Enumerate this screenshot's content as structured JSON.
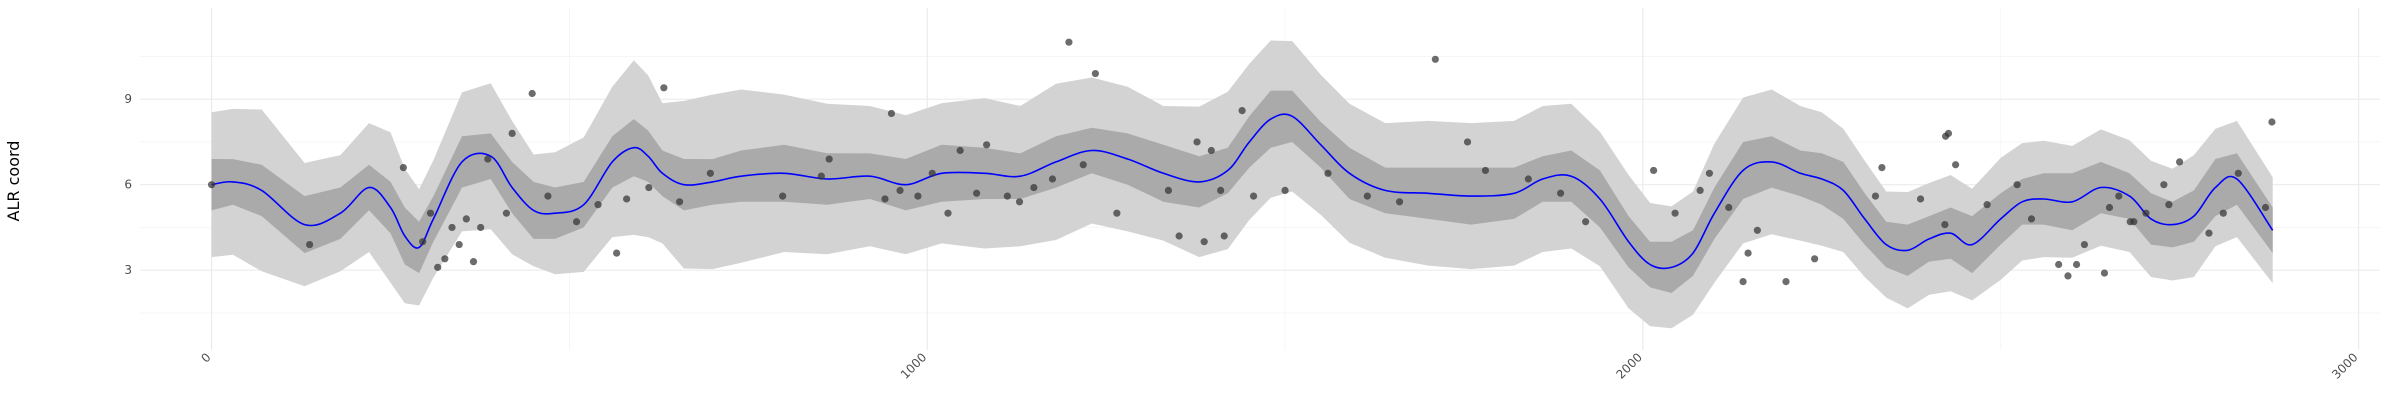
{
  "chart_data": {
    "type": "scatter",
    "title": "",
    "xlabel": "",
    "ylabel": "ALR coord",
    "xlim": [
      -100,
      3030
    ],
    "ylim": [
      0.2,
      12.2
    ],
    "x_ticks": [
      0,
      1000,
      2000,
      3000
    ],
    "x_tick_labels": [
      "0",
      "1000",
      "2000",
      "3000"
    ],
    "y_ticks": [
      3,
      6,
      9
    ],
    "y_tick_labels": [
      "3",
      "6",
      "9"
    ],
    "grid": true,
    "colors": {
      "line": "#0000ff",
      "inner_band": "#aaaaaa",
      "outer_band": "#d3d3d3",
      "points": "#333333"
    },
    "series": [
      {
        "role": "fitted-line",
        "x": [
          0,
          30,
          70,
          130,
          180,
          220,
          250,
          270,
          290,
          310,
          350,
          390,
          420,
          450,
          480,
          520,
          560,
          590,
          610,
          630,
          660,
          700,
          740,
          800,
          860,
          920,
          970,
          1020,
          1080,
          1130,
          1180,
          1230,
          1280,
          1330,
          1380,
          1420,
          1450,
          1480,
          1510,
          1550,
          1590,
          1640,
          1700,
          1760,
          1820,
          1860,
          1900,
          1940,
          1980,
          2010,
          2040,
          2070,
          2100,
          2140,
          2180,
          2220,
          2250,
          2280,
          2310,
          2340,
          2370,
          2400,
          2430,
          2460,
          2500,
          2530,
          2560,
          2600,
          2640,
          2680,
          2710,
          2740,
          2770,
          2800,
          2830,
          2880
        ],
        "y": [
          6.0,
          6.1,
          5.8,
          4.6,
          5.0,
          5.9,
          5.2,
          4.2,
          3.8,
          4.8,
          6.8,
          7.0,
          5.9,
          5.1,
          5.0,
          5.3,
          6.8,
          7.3,
          7.0,
          6.4,
          6.0,
          6.1,
          6.3,
          6.4,
          6.2,
          6.3,
          6.0,
          6.4,
          6.4,
          6.3,
          6.8,
          7.2,
          6.9,
          6.4,
          6.1,
          6.5,
          7.5,
          8.3,
          8.4,
          7.4,
          6.4,
          5.8,
          5.7,
          5.6,
          5.7,
          6.2,
          6.3,
          5.5,
          4.0,
          3.2,
          3.1,
          3.6,
          5.0,
          6.5,
          6.8,
          6.4,
          6.2,
          5.8,
          4.8,
          3.9,
          3.7,
          4.1,
          4.3,
          3.9,
          4.8,
          5.4,
          5.5,
          5.4,
          5.9,
          5.6,
          4.8,
          4.6,
          4.9,
          5.9,
          6.2,
          4.4
        ]
      },
      {
        "role": "observations",
        "x": [
          0,
          137,
          268,
          295,
          306,
          316,
          326,
          336,
          346,
          356,
          366,
          376,
          386,
          412,
          420,
          448,
          470,
          510,
          540,
          566,
          580,
          611,
          632,
          654,
          697,
          798,
          852,
          863,
          941,
          950,
          962,
          987,
          1007,
          1029,
          1046,
          1069,
          1083,
          1112,
          1129,
          1149,
          1175,
          1198,
          1218,
          1235,
          1265,
          1337,
          1352,
          1377,
          1387,
          1397,
          1410,
          1415,
          1440,
          1456,
          1500,
          1560,
          1615,
          1660,
          1710,
          1755,
          1780,
          1840,
          1885,
          1920,
          2015,
          2045,
          2080,
          2093,
          2120,
          2140,
          2147,
          2160,
          2200,
          2240,
          2325,
          2334,
          2388,
          2422,
          2423,
          2427,
          2437,
          2481,
          2523,
          2543,
          2581,
          2594,
          2606,
          2617,
          2645,
          2652,
          2665,
          2681,
          2686,
          2703,
          2728,
          2735,
          2750,
          2791,
          2811,
          2832,
          2870,
          2879
        ],
        "y": [
          6.0,
          3.9,
          6.6,
          4.0,
          5.0,
          3.1,
          3.4,
          4.5,
          3.9,
          4.8,
          3.3,
          4.5,
          6.9,
          5.0,
          7.8,
          9.2,
          5.6,
          4.7,
          5.3,
          3.6,
          5.5,
          5.9,
          9.4,
          5.4,
          6.4,
          5.6,
          6.3,
          6.9,
          5.5,
          8.5,
          5.8,
          5.6,
          6.4,
          5.0,
          7.2,
          5.7,
          7.4,
          5.6,
          5.4,
          5.9,
          6.2,
          11.0,
          6.7,
          9.9,
          5.0,
          5.8,
          4.2,
          7.5,
          4.0,
          7.2,
          5.8,
          4.2,
          8.6,
          5.6,
          5.8,
          6.4,
          5.6,
          5.4,
          10.4,
          7.5,
          6.5,
          6.2,
          5.7,
          4.7,
          6.5,
          5.0,
          5.8,
          6.4,
          5.2,
          2.6,
          3.6,
          4.4,
          2.6,
          3.4,
          5.6,
          6.6,
          5.5,
          4.6,
          7.7,
          7.8,
          6.7,
          5.3,
          6.0,
          4.8,
          3.2,
          2.8,
          3.2,
          3.9,
          2.9,
          5.2,
          5.6,
          4.7,
          4.7,
          5.0,
          6.0,
          5.3,
          6.8,
          4.3,
          5.0,
          6.4,
          5.2,
          8.2
        ]
      }
    ],
    "bands": [
      {
        "role": "inner-band",
        "half_width": [
          0.9,
          0.8,
          0.9,
          1.0,
          0.9,
          0.8,
          0.9,
          1.0,
          0.9,
          0.8,
          0.9,
          0.8,
          0.9,
          1.0,
          0.9,
          0.8,
          0.9,
          1.0,
          0.9,
          0.8,
          0.9,
          0.8,
          0.9,
          1.0,
          0.9,
          0.8,
          0.9,
          1.0,
          0.9,
          0.8,
          0.9,
          0.8,
          0.9,
          1.0,
          0.9,
          0.8,
          0.9,
          1.0,
          0.9,
          0.8,
          0.9,
          0.8,
          0.9,
          1.0,
          0.9,
          0.8,
          0.9,
          1.0,
          0.9,
          0.8,
          0.9,
          0.8,
          0.9,
          1.0,
          0.9,
          0.8,
          0.9,
          1.0,
          0.9,
          0.8,
          0.9,
          0.8,
          0.9,
          1.0,
          0.9,
          0.8,
          0.9,
          1.0,
          0.9,
          0.8,
          0.9,
          0.8,
          0.9,
          1.0,
          0.9,
          0.8
        ]
      },
      {
        "role": "outer-band",
        "half_width": [
          2.5,
          2.6,
          2.8,
          2.2,
          2.0,
          2.3,
          2.6,
          2.4,
          2.0,
          2.1,
          2.4,
          2.6,
          2.3,
          2.0,
          2.1,
          2.4,
          2.6,
          3.1,
          2.8,
          2.5,
          2.9,
          3.1,
          3.0,
          2.8,
          2.6,
          2.5,
          2.4,
          2.5,
          2.6,
          2.5,
          2.7,
          2.6,
          2.5,
          2.4,
          2.6,
          2.8,
          2.7,
          2.8,
          2.6,
          2.5,
          2.4,
          2.4,
          2.5,
          2.6,
          2.5,
          2.6,
          2.5,
          2.4,
          2.3,
          2.2,
          2.1,
          2.2,
          2.4,
          2.6,
          2.5,
          2.4,
          2.3,
          2.2,
          2.0,
          1.9,
          2.0,
          2.0,
          2.0,
          2.0,
          2.1,
          2.1,
          2.0,
          2.0,
          2.0,
          2.0,
          2.0,
          2.0,
          2.1,
          2.1,
          2.0,
          1.9
        ]
      }
    ]
  }
}
